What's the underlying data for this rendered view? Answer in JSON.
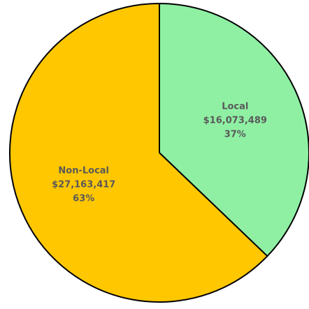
{
  "chart_data": {
    "type": "pie",
    "categories": [
      "Local",
      "Non-Local"
    ],
    "values": [
      16073489,
      27163417
    ],
    "value_labels": [
      "$16,073,489",
      "$27,163,417"
    ],
    "percent_labels": [
      "37%",
      "63%"
    ],
    "colors": [
      "#8ff0a4",
      "#ffc700"
    ]
  }
}
